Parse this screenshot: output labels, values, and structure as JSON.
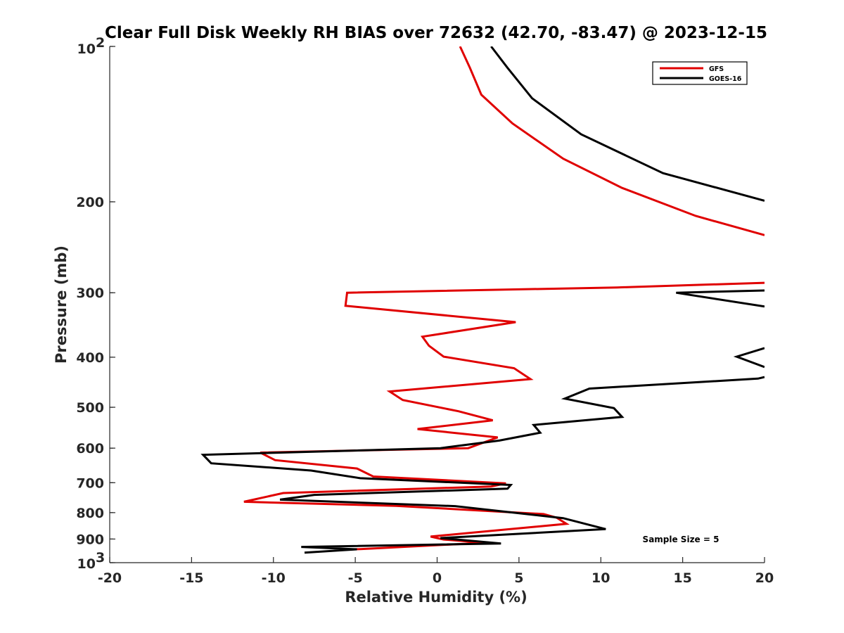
{
  "chart_data": {
    "type": "line",
    "title": "Clear Full Disk Weekly RH BIAS over 72632 (42.70, -83.47) @ 2023-12-15",
    "xlabel": "Relative Humidity (%)",
    "ylabel": "Pressure (mb)",
    "xlim": [
      -20,
      20
    ],
    "ylim": [
      100,
      1000
    ],
    "y_scale": "log",
    "y_reversed": true,
    "grid": false,
    "x_ticks": [
      "-20",
      "-15",
      "-10",
      "-5",
      "0",
      "5",
      "10",
      "15",
      "20"
    ],
    "y_ticks": [
      {
        "value": 200,
        "label": "200"
      },
      {
        "value": 300,
        "label": "300"
      },
      {
        "value": 400,
        "label": "400"
      },
      {
        "value": 500,
        "label": "500"
      },
      {
        "value": 600,
        "label": "600"
      },
      {
        "value": 700,
        "label": "700"
      },
      {
        "value": 800,
        "label": "800"
      },
      {
        "value": 900,
        "label": "900"
      }
    ],
    "y_tick_top": {
      "base": "10",
      "exp": "2"
    },
    "y_tick_bottom": {
      "base": "10",
      "exp": "3"
    },
    "legend_position": "top-right",
    "series": [
      {
        "name": "GFS",
        "color": "#e00000",
        "x": [
          1.4,
          2.0,
          2.7,
          4.6,
          7.7,
          11.3,
          15.8,
          20.0,
          null,
          20.0,
          11.0,
          -5.5,
          -5.6,
          4.8,
          -0.9,
          -0.5,
          0.4,
          4.7,
          5.7,
          -2.9,
          -2.1,
          1.3,
          3.4,
          -1.2,
          3.7,
          1.9,
          -10.8,
          -9.9,
          -4.9,
          -3.9,
          4.2,
          3.3,
          -9.4,
          -11.8,
          -2.5,
          6.5,
          7.3,
          7.9,
          -0.4,
          0.4,
          2.9,
          -4.6,
          -5.8
        ],
        "y": [
          100,
          110,
          124,
          141,
          165,
          188,
          213,
          232,
          null,
          287,
          293,
          300,
          318,
          342,
          365,
          380,
          399,
          420,
          441,
          466,
          484,
          509,
          530,
          551,
          572,
          600,
          612,
          633,
          657,
          681,
          702,
          712,
          733,
          762,
          776,
          805,
          818,
          841,
          890,
          902,
          915,
          941,
          944
        ]
      },
      {
        "name": "GOES-16",
        "color": "#000000",
        "x": [
          3.3,
          4.3,
          5.8,
          8.8,
          13.8,
          20.0,
          null,
          20.0,
          14.6,
          20.0,
          null,
          20.0,
          18.3,
          20.0,
          null,
          20.0,
          19.6,
          9.3,
          7.8,
          10.8,
          11.3,
          5.9,
          6.3,
          3.8,
          0.2,
          -14.3,
          -13.8,
          -7.7,
          -4.7,
          4.5,
          4.3,
          -7.5,
          -9.6,
          1.1,
          7.7,
          10.3,
          0.2,
          3.9,
          -8.3,
          -4.9,
          -8.1
        ],
        "y": [
          100,
          110,
          126,
          148,
          176,
          199,
          null,
          297,
          300,
          319,
          null,
          384,
          399,
          418,
          null,
          437,
          440,
          460,
          481,
          502,
          522,
          541,
          560,
          580,
          600,
          618,
          642,
          663,
          686,
          707,
          719,
          739,
          755,
          777,
          820,
          861,
          896,
          918,
          932,
          942,
          956
        ]
      }
    ],
    "annotations": [
      "Sample Size = 5"
    ]
  }
}
